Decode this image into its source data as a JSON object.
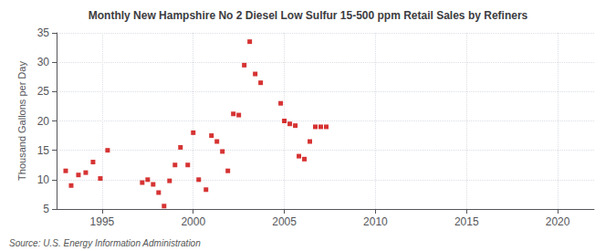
{
  "chart_data": {
    "type": "scatter",
    "title": "Monthly New Hampshire No 2 Diesel Low Sulfur 15-500 ppm Retail Sales by Refiners",
    "ylabel": "Thousand Gallons per Day",
    "annotations": [
      "Source: U.S. Energy Information Administration"
    ],
    "color": "#cc0000",
    "marker": "square",
    "grid": true,
    "xlim": [
      1992.5,
      2022
    ],
    "ylim": [
      5,
      35
    ],
    "xticks": [
      1995,
      2000,
      2005,
      2010,
      2015,
      2020
    ],
    "yticks": [
      5,
      10,
      15,
      20,
      25,
      30,
      35
    ],
    "x": [
      1993.0,
      1993.3,
      1993.7,
      1994.1,
      1994.5,
      1994.9,
      1995.3,
      1997.2,
      1997.5,
      1997.8,
      1998.1,
      1998.4,
      1998.7,
      1999.0,
      1999.3,
      1999.7,
      2000.0,
      2000.3,
      2000.7,
      2001.0,
      2001.3,
      2001.6,
      2001.9,
      2002.2,
      2002.5,
      2002.8,
      2003.1,
      2003.4,
      2003.7,
      2004.8,
      2005.0,
      2005.3,
      2005.6,
      2005.8,
      2006.1,
      2006.4,
      2006.7,
      2007.0,
      2007.3
    ],
    "values": [
      11.5,
      9.0,
      10.8,
      11.2,
      13.0,
      10.2,
      15.0,
      9.5,
      10.0,
      9.2,
      7.8,
      5.5,
      9.8,
      12.5,
      15.5,
      12.5,
      18.0,
      10.0,
      8.3,
      17.5,
      16.5,
      14.8,
      11.5,
      21.2,
      21.0,
      29.5,
      33.5,
      28.0,
      26.5,
      23.0,
      20.0,
      19.5,
      19.2,
      14.0,
      13.5,
      16.5,
      19.0,
      19.0,
      19.0
    ]
  }
}
